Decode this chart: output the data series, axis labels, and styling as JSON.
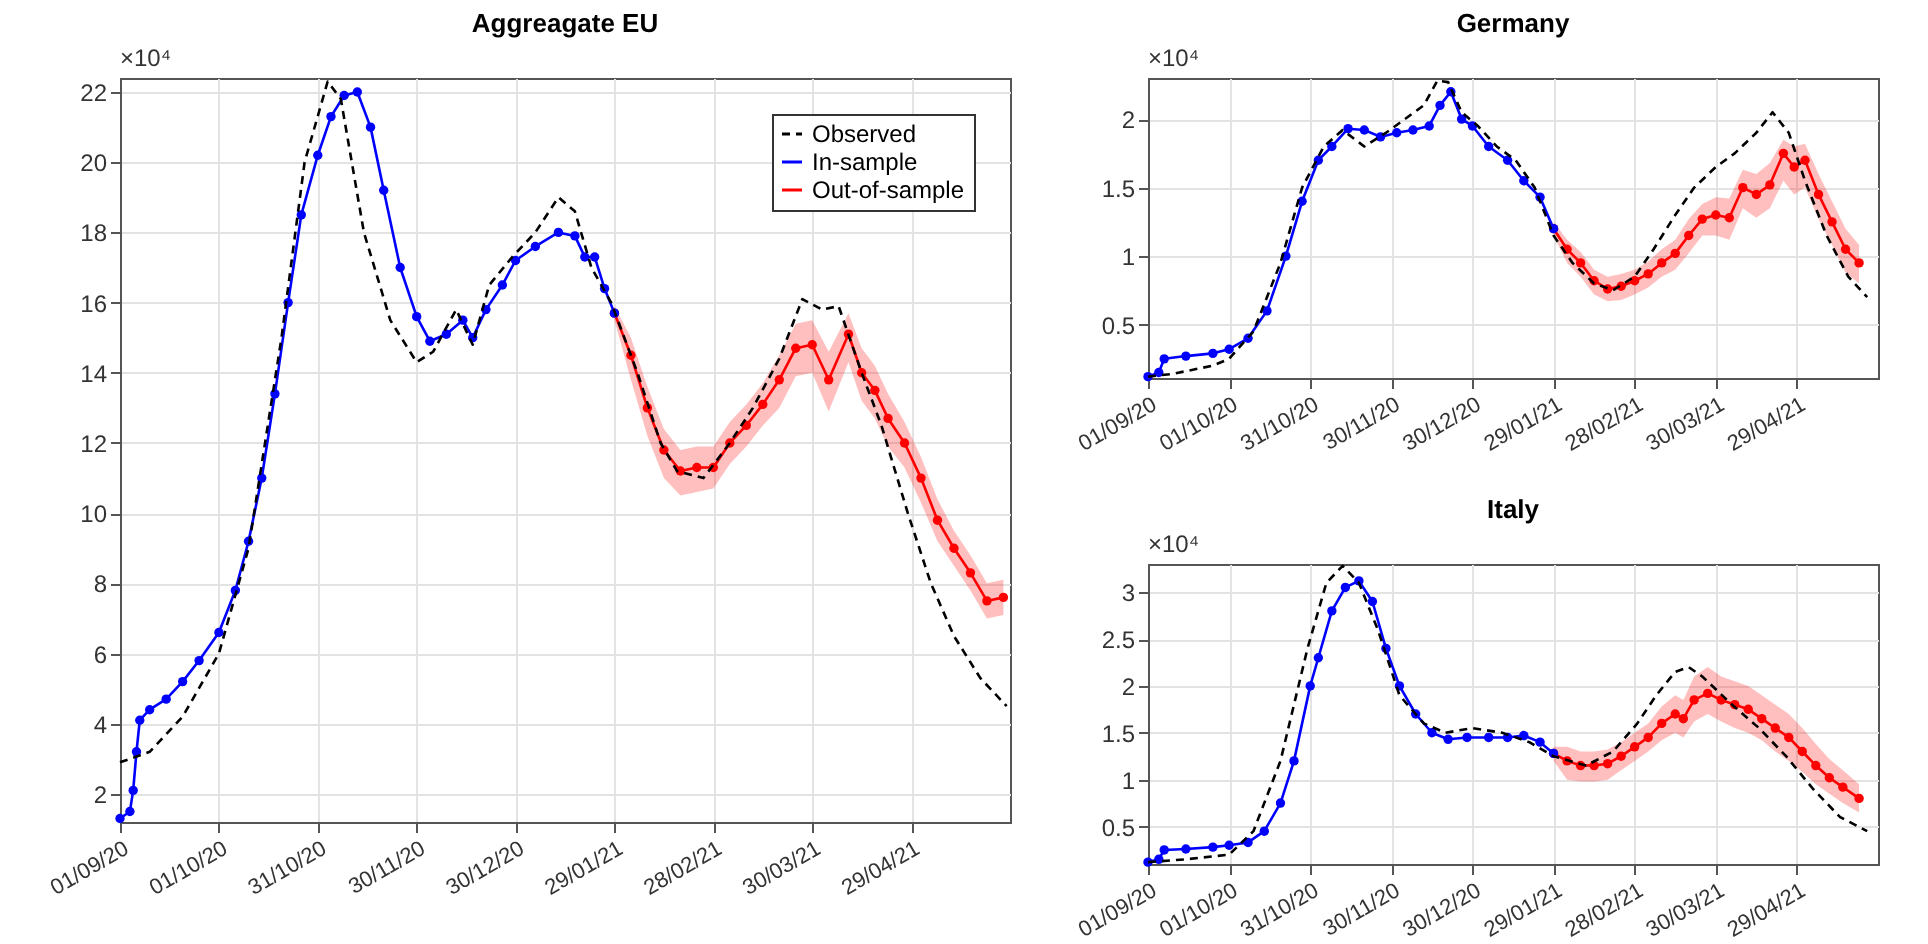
{
  "chart_data": [
    {
      "type": "line",
      "title": "Aggreagate EU",
      "annotations": [
        "×10⁴"
      ],
      "legend": "top right",
      "grid": true,
      "xlim": [
        "2020-09-01",
        "2021-05-29"
      ],
      "xticks": [
        {
          "value": "2020-09-01",
          "label": "01/09/20"
        },
        {
          "value": "2020-10-01",
          "label": "01/10/20"
        },
        {
          "value": "2020-10-31",
          "label": "31/10/20"
        },
        {
          "value": "2020-11-30",
          "label": "30/11/20"
        },
        {
          "value": "2020-12-30",
          "label": "30/12/20"
        },
        {
          "value": "2021-01-29",
          "label": "29/01/21"
        },
        {
          "value": "2021-02-28",
          "label": "28/02/21"
        },
        {
          "value": "2021-03-30",
          "label": "30/03/21"
        },
        {
          "value": "2021-04-29",
          "label": "29/04/21"
        }
      ],
      "ylim": [
        1.2,
        22.4
      ],
      "yticks": [
        2,
        4,
        6,
        8,
        10,
        12,
        14,
        16,
        18,
        20,
        22
      ],
      "series": [
        {
          "name": "Observed",
          "color": "#000000",
          "line_style": "dashed",
          "marker": "none",
          "x": [
            "2020-09-01",
            "2020-09-10",
            "2020-09-20",
            "2020-10-01",
            "2020-10-10",
            "2020-10-20",
            "2020-10-27",
            "2020-11-03",
            "2020-11-07",
            "2020-11-14",
            "2020-11-22",
            "2020-11-30",
            "2020-12-05",
            "2020-12-12",
            "2020-12-17",
            "2020-12-22",
            "2020-12-29",
            "2021-01-05",
            "2021-01-12",
            "2021-01-17",
            "2021-01-22",
            "2021-01-28",
            "2021-02-05",
            "2021-02-12",
            "2021-02-17",
            "2021-02-25",
            "2021-03-05",
            "2021-03-12",
            "2021-03-20",
            "2021-03-27",
            "2021-04-02",
            "2021-04-07",
            "2021-04-14",
            "2021-04-20",
            "2021-04-28",
            "2021-05-05",
            "2021-05-12",
            "2021-05-20",
            "2021-05-28"
          ],
          "values": [
            2.9,
            3.2,
            4.2,
            6.0,
            9.0,
            15.0,
            20.0,
            22.3,
            21.8,
            18.0,
            15.5,
            14.3,
            14.6,
            15.8,
            14.8,
            16.5,
            17.3,
            18.0,
            19.0,
            18.6,
            17.0,
            16.0,
            14.0,
            12.0,
            11.2,
            11.0,
            12.0,
            13.0,
            14.4,
            16.1,
            15.8,
            15.9,
            14.0,
            12.5,
            10.0,
            8.0,
            6.5,
            5.3,
            4.5
          ]
        },
        {
          "name": "In-sample",
          "color": "#0000ff",
          "line_style": "solid",
          "marker": "circle",
          "x": [
            "2020-09-01",
            "2020-09-04",
            "2020-09-05",
            "2020-09-06",
            "2020-09-07",
            "2020-09-10",
            "2020-09-15",
            "2020-09-20",
            "2020-09-25",
            "2020-10-01",
            "2020-10-06",
            "2020-10-10",
            "2020-10-14",
            "2020-10-18",
            "2020-10-22",
            "2020-10-26",
            "2020-10-31",
            "2020-11-04",
            "2020-11-08",
            "2020-11-12",
            "2020-11-16",
            "2020-11-20",
            "2020-11-25",
            "2020-11-30",
            "2020-12-04",
            "2020-12-09",
            "2020-12-14",
            "2020-12-17",
            "2020-12-21",
            "2020-12-26",
            "2020-12-30",
            "2021-01-05",
            "2021-01-12",
            "2021-01-17",
            "2021-01-20",
            "2021-01-23",
            "2021-01-26",
            "2021-01-29"
          ],
          "values": [
            1.3,
            1.5,
            2.1,
            3.2,
            4.1,
            4.4,
            4.7,
            5.2,
            5.8,
            6.6,
            7.8,
            9.2,
            11.0,
            13.4,
            16.0,
            18.5,
            20.2,
            21.3,
            21.9,
            22.0,
            21.0,
            19.2,
            17.0,
            15.6,
            14.9,
            15.1,
            15.5,
            15.0,
            15.8,
            16.5,
            17.2,
            17.6,
            18.0,
            17.9,
            17.3,
            17.3,
            16.4,
            15.7
          ]
        },
        {
          "name": "Out-of-sample",
          "color": "#ff0000",
          "line_style": "solid",
          "marker": "circle",
          "x": [
            "2021-01-29",
            "2021-02-03",
            "2021-02-08",
            "2021-02-13",
            "2021-02-18",
            "2021-02-23",
            "2021-02-28",
            "2021-03-05",
            "2021-03-10",
            "2021-03-15",
            "2021-03-20",
            "2021-03-25",
            "2021-03-30",
            "2021-04-04",
            "2021-04-10",
            "2021-04-14",
            "2021-04-18",
            "2021-04-22",
            "2021-04-27",
            "2021-05-02",
            "2021-05-07",
            "2021-05-12",
            "2021-05-17",
            "2021-05-22",
            "2021-05-27"
          ],
          "values": [
            15.7,
            14.5,
            13.0,
            11.8,
            11.2,
            11.3,
            11.3,
            12.0,
            12.5,
            13.1,
            13.8,
            14.7,
            14.8,
            13.8,
            15.1,
            14.0,
            13.5,
            12.7,
            12.0,
            11.0,
            9.8,
            9.0,
            8.3,
            7.5,
            7.6
          ],
          "lower": [
            15.5,
            13.8,
            12.2,
            11.0,
            10.5,
            10.6,
            10.7,
            11.4,
            11.9,
            12.5,
            13.0,
            13.9,
            14.0,
            12.9,
            14.3,
            13.2,
            12.7,
            11.9,
            11.3,
            10.3,
            9.2,
            8.5,
            7.8,
            7.0,
            7.1
          ],
          "upper": [
            15.9,
            15.0,
            13.6,
            12.4,
            11.8,
            11.9,
            11.9,
            12.6,
            13.1,
            13.7,
            14.5,
            15.4,
            15.5,
            14.6,
            15.7,
            14.7,
            14.2,
            13.4,
            12.6,
            11.6,
            10.4,
            9.5,
            8.8,
            8.0,
            8.1
          ]
        }
      ]
    },
    {
      "type": "line",
      "title": "Germany",
      "annotations": [
        "×10⁴"
      ],
      "grid": true,
      "xlim": [
        "2020-09-01",
        "2021-05-29"
      ],
      "xticks": [
        {
          "value": "2020-09-01",
          "label": "01/09/20"
        },
        {
          "value": "2020-10-01",
          "label": "01/10/20"
        },
        {
          "value": "2020-10-31",
          "label": "31/10/20"
        },
        {
          "value": "2020-11-30",
          "label": "30/11/20"
        },
        {
          "value": "2020-12-30",
          "label": "30/12/20"
        },
        {
          "value": "2021-01-29",
          "label": "29/01/21"
        },
        {
          "value": "2021-02-28",
          "label": "28/02/21"
        },
        {
          "value": "2021-03-30",
          "label": "30/03/21"
        },
        {
          "value": "2021-04-29",
          "label": "29/04/21"
        }
      ],
      "ylim": [
        0.11,
        2.3
      ],
      "yticks": [
        0.5,
        1,
        1.5,
        2
      ],
      "series": [
        {
          "color": "#000000",
          "line_style": "dashed",
          "marker": "none",
          "x": [
            "2020-09-01",
            "2020-09-10",
            "2020-09-25",
            "2020-10-01",
            "2020-10-10",
            "2020-10-20",
            "2020-10-28",
            "2020-11-05",
            "2020-11-12",
            "2020-11-20",
            "2020-11-28",
            "2020-12-05",
            "2020-12-12",
            "2020-12-17",
            "2020-12-21",
            "2020-12-26",
            "2021-01-01",
            "2021-01-08",
            "2021-01-15",
            "2021-01-22",
            "2021-01-29",
            "2021-02-05",
            "2021-02-13",
            "2021-02-20",
            "2021-02-28",
            "2021-03-07",
            "2021-03-15",
            "2021-03-22",
            "2021-03-30",
            "2021-04-06",
            "2021-04-14",
            "2021-04-20",
            "2021-04-26",
            "2021-05-02",
            "2021-05-10",
            "2021-05-18",
            "2021-05-25"
          ],
          "values": [
            0.12,
            0.14,
            0.2,
            0.25,
            0.45,
            0.95,
            1.5,
            1.8,
            1.92,
            1.8,
            1.9,
            2.0,
            2.1,
            2.28,
            2.27,
            2.05,
            1.95,
            1.8,
            1.7,
            1.5,
            1.15,
            0.95,
            0.8,
            0.75,
            0.85,
            1.05,
            1.3,
            1.5,
            1.65,
            1.75,
            1.9,
            2.05,
            1.9,
            1.55,
            1.15,
            0.85,
            0.7
          ]
        },
        {
          "color": "#0000ff",
          "line_style": "solid",
          "marker": "circle",
          "x": [
            "2020-09-01",
            "2020-09-05",
            "2020-09-07",
            "2020-09-15",
            "2020-09-25",
            "2020-10-01",
            "2020-10-08",
            "2020-10-15",
            "2020-10-22",
            "2020-10-28",
            "2020-11-03",
            "2020-11-08",
            "2020-11-14",
            "2020-11-20",
            "2020-11-26",
            "2020-12-02",
            "2020-12-08",
            "2020-12-14",
            "2020-12-18",
            "2020-12-22",
            "2020-12-26",
            "2020-12-30",
            "2021-01-05",
            "2021-01-12",
            "2021-01-18",
            "2021-01-24",
            "2021-01-29"
          ],
          "values": [
            0.12,
            0.15,
            0.25,
            0.27,
            0.29,
            0.32,
            0.4,
            0.6,
            1.0,
            1.4,
            1.7,
            1.8,
            1.93,
            1.92,
            1.87,
            1.9,
            1.92,
            1.95,
            2.1,
            2.2,
            2.0,
            1.95,
            1.8,
            1.7,
            1.55,
            1.43,
            1.2
          ]
        },
        {
          "color": "#ff0000",
          "line_style": "solid",
          "marker": "circle",
          "x": [
            "2021-01-29",
            "2021-02-03",
            "2021-02-08",
            "2021-02-13",
            "2021-02-18",
            "2021-02-23",
            "2021-02-28",
            "2021-03-05",
            "2021-03-10",
            "2021-03-15",
            "2021-03-20",
            "2021-03-25",
            "2021-03-30",
            "2021-04-04",
            "2021-04-09",
            "2021-04-14",
            "2021-04-19",
            "2021-04-24",
            "2021-04-28",
            "2021-05-02",
            "2021-05-07",
            "2021-05-12",
            "2021-05-17",
            "2021-05-22"
          ],
          "values": [
            1.2,
            1.05,
            0.95,
            0.82,
            0.76,
            0.78,
            0.82,
            0.87,
            0.95,
            1.02,
            1.15,
            1.27,
            1.3,
            1.28,
            1.5,
            1.45,
            1.52,
            1.75,
            1.65,
            1.7,
            1.45,
            1.25,
            1.05,
            0.95
          ],
          "lower": [
            1.15,
            0.95,
            0.85,
            0.72,
            0.67,
            0.68,
            0.72,
            0.77,
            0.85,
            0.9,
            1.02,
            1.15,
            1.15,
            1.12,
            1.35,
            1.28,
            1.35,
            1.55,
            1.45,
            1.5,
            1.27,
            1.08,
            0.88,
            0.8
          ],
          "upper": [
            1.25,
            1.12,
            1.03,
            0.9,
            0.85,
            0.87,
            0.9,
            0.96,
            1.05,
            1.12,
            1.27,
            1.38,
            1.43,
            1.42,
            1.63,
            1.6,
            1.68,
            1.85,
            1.8,
            1.82,
            1.6,
            1.4,
            1.2,
            1.08
          ]
        }
      ]
    },
    {
      "type": "line",
      "title": "Italy",
      "annotations": [
        "×10⁴"
      ],
      "grid": true,
      "xlim": [
        "2020-09-01",
        "2021-05-29"
      ],
      "xticks": [
        {
          "value": "2020-09-01",
          "label": "01/09/20"
        },
        {
          "value": "2020-10-01",
          "label": "01/10/20"
        },
        {
          "value": "2020-10-31",
          "label": "31/10/20"
        },
        {
          "value": "2020-11-30",
          "label": "30/11/20"
        },
        {
          "value": "2020-12-30",
          "label": "30/12/20"
        },
        {
          "value": "2021-01-29",
          "label": "29/01/21"
        },
        {
          "value": "2021-02-28",
          "label": "28/02/21"
        },
        {
          "value": "2021-03-30",
          "label": "30/03/21"
        },
        {
          "value": "2021-04-29",
          "label": "29/04/21"
        }
      ],
      "ylim": [
        0.1,
        3.3
      ],
      "yticks": [
        0.5,
        1,
        1.5,
        2,
        2.5,
        3
      ],
      "series": [
        {
          "color": "#000000",
          "line_style": "dashed",
          "marker": "none",
          "x": [
            "2020-09-01",
            "2020-09-15",
            "2020-10-01",
            "2020-10-10",
            "2020-10-20",
            "2020-10-30",
            "2020-11-06",
            "2020-11-12",
            "2020-11-18",
            "2020-11-25",
            "2020-12-03",
            "2020-12-12",
            "2020-12-20",
            "2020-12-30",
            "2021-01-10",
            "2021-01-20",
            "2021-01-29",
            "2021-02-10",
            "2021-02-20",
            "2021-03-01",
            "2021-03-08",
            "2021-03-15",
            "2021-03-20",
            "2021-03-25",
            "2021-04-05",
            "2021-04-15",
            "2021-04-25",
            "2021-05-05",
            "2021-05-15",
            "2021-05-25"
          ],
          "values": [
            0.12,
            0.15,
            0.2,
            0.45,
            1.2,
            2.4,
            3.1,
            3.28,
            3.1,
            2.6,
            1.9,
            1.6,
            1.5,
            1.55,
            1.5,
            1.4,
            1.25,
            1.15,
            1.3,
            1.6,
            1.9,
            2.15,
            2.2,
            2.1,
            1.8,
            1.55,
            1.25,
            0.9,
            0.6,
            0.45
          ]
        },
        {
          "color": "#0000ff",
          "line_style": "solid",
          "marker": "circle",
          "x": [
            "2020-09-01",
            "2020-09-05",
            "2020-09-07",
            "2020-09-15",
            "2020-09-25",
            "2020-10-01",
            "2020-10-08",
            "2020-10-14",
            "2020-10-20",
            "2020-10-25",
            "2020-10-31",
            "2020-11-03",
            "2020-11-08",
            "2020-11-13",
            "2020-11-18",
            "2020-11-23",
            "2020-11-28",
            "2020-12-03",
            "2020-12-09",
            "2020-12-15",
            "2020-12-21",
            "2020-12-28",
            "2021-01-05",
            "2021-01-12",
            "2021-01-18",
            "2021-01-24",
            "2021-01-29"
          ],
          "values": [
            0.12,
            0.15,
            0.25,
            0.26,
            0.28,
            0.3,
            0.33,
            0.45,
            0.75,
            1.2,
            2.0,
            2.3,
            2.8,
            3.05,
            3.12,
            2.9,
            2.4,
            2.0,
            1.7,
            1.5,
            1.43,
            1.45,
            1.45,
            1.45,
            1.47,
            1.4,
            1.28
          ]
        },
        {
          "color": "#ff0000",
          "line_style": "solid",
          "marker": "circle",
          "x": [
            "2021-01-29",
            "2021-02-03",
            "2021-02-08",
            "2021-02-13",
            "2021-02-18",
            "2021-02-23",
            "2021-02-28",
            "2021-03-05",
            "2021-03-10",
            "2021-03-15",
            "2021-03-18",
            "2021-03-22",
            "2021-03-27",
            "2021-04-01",
            "2021-04-06",
            "2021-04-11",
            "2021-04-16",
            "2021-04-21",
            "2021-04-26",
            "2021-05-01",
            "2021-05-06",
            "2021-05-11",
            "2021-05-16",
            "2021-05-22"
          ],
          "values": [
            1.28,
            1.2,
            1.15,
            1.15,
            1.17,
            1.25,
            1.35,
            1.45,
            1.6,
            1.7,
            1.65,
            1.85,
            1.92,
            1.85,
            1.8,
            1.75,
            1.65,
            1.55,
            1.45,
            1.3,
            1.15,
            1.02,
            0.92,
            0.8
          ],
          "lower": [
            1.2,
            1.0,
            0.98,
            0.98,
            1.0,
            1.1,
            1.2,
            1.3,
            1.42,
            1.5,
            1.45,
            1.62,
            1.7,
            1.62,
            1.55,
            1.5,
            1.42,
            1.3,
            1.2,
            1.08,
            0.95,
            0.85,
            0.75,
            0.65
          ],
          "upper": [
            1.35,
            1.35,
            1.3,
            1.3,
            1.32,
            1.4,
            1.5,
            1.6,
            1.78,
            1.9,
            1.85,
            2.1,
            2.2,
            2.1,
            2.05,
            2.0,
            1.9,
            1.8,
            1.7,
            1.55,
            1.38,
            1.22,
            1.1,
            0.95
          ]
        }
      ]
    }
  ]
}
